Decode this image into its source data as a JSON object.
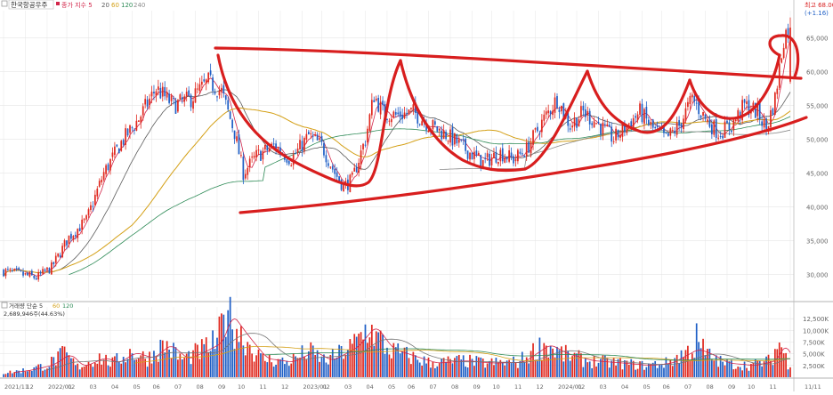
{
  "legend": {
    "stock_name": "한국항공우주",
    "ma_label": "종가 지수 5",
    "ma_periods": [
      "20",
      "60",
      "120",
      "240"
    ],
    "ma_colors": [
      "#d2264a",
      "#5b5b5b",
      "#d4a017",
      "#2e8b57",
      "#8c8c8c"
    ]
  },
  "max_label": "최고 68.00",
  "change_label": "(+1.16)",
  "volume_legend": {
    "label": "거래량 단순 5",
    "ma_periods": [
      "60",
      "120"
    ],
    "current_value": "2,689,946주(44.63%)"
  },
  "colors": {
    "up": "#e0281e",
    "down": "#1f5fc6",
    "annotation": "#d81e1e",
    "grid": "#e6e6e6",
    "axis_text": "#666666"
  },
  "chart_data": {
    "type": "candlestick",
    "title": "",
    "price_axis": {
      "ticks": [
        "65,000",
        "60,000",
        "55,000",
        "50,000",
        "45,000",
        "40,000",
        "35,000",
        "30,000"
      ],
      "range": [
        26500,
        69000
      ]
    },
    "volume_axis": {
      "ticks": [
        "12,500K",
        "10,000K",
        "7,500K",
        "5,000K",
        "2,500K"
      ],
      "range": [
        0,
        15000
      ]
    },
    "x_tick_labels": [
      "2021/11",
      "12",
      "2022/01",
      "02",
      "03",
      "04",
      "05",
      "06",
      "07",
      "08",
      "09",
      "10",
      "11",
      "12",
      "2023/01",
      "02",
      "03",
      "04",
      "05",
      "06",
      "07",
      "08",
      "09",
      "10",
      "11",
      "12",
      "2024/01",
      "02",
      "03",
      "04",
      "05",
      "06",
      "07",
      "08",
      "09",
      "10",
      "11",
      "11/11"
    ],
    "price_waypoints": [
      [
        0,
        30500
      ],
      [
        8,
        30000
      ],
      [
        15,
        29500
      ],
      [
        22,
        31000
      ],
      [
        30,
        35500
      ],
      [
        38,
        38000
      ],
      [
        46,
        45000
      ],
      [
        54,
        49500
      ],
      [
        62,
        53000
      ],
      [
        70,
        57500
      ],
      [
        78,
        55000
      ],
      [
        86,
        56000
      ],
      [
        94,
        58500
      ],
      [
        100,
        57000
      ],
      [
        106,
        51000
      ],
      [
        110,
        45000
      ],
      [
        116,
        47500
      ],
      [
        124,
        49000
      ],
      [
        132,
        47000
      ],
      [
        140,
        50500
      ],
      [
        146,
        49000
      ],
      [
        152,
        45000
      ],
      [
        156,
        43000
      ],
      [
        160,
        44000
      ],
      [
        166,
        50000
      ],
      [
        170,
        56500
      ],
      [
        174,
        54000
      ],
      [
        180,
        53500
      ],
      [
        188,
        54000
      ],
      [
        196,
        52000
      ],
      [
        204,
        50500
      ],
      [
        212,
        48500
      ],
      [
        220,
        46500
      ],
      [
        228,
        48000
      ],
      [
        234,
        47000
      ],
      [
        240,
        48500
      ],
      [
        248,
        53000
      ],
      [
        254,
        56000
      ],
      [
        260,
        52000
      ],
      [
        266,
        54000
      ],
      [
        272,
        52500
      ],
      [
        280,
        50000
      ],
      [
        286,
        52000
      ],
      [
        292,
        54000
      ],
      [
        298,
        51500
      ],
      [
        304,
        50000
      ],
      [
        310,
        52000
      ],
      [
        316,
        56000
      ],
      [
        322,
        53000
      ],
      [
        328,
        51000
      ],
      [
        334,
        52000
      ],
      [
        340,
        55000
      ],
      [
        346,
        54000
      ],
      [
        350,
        51500
      ],
      [
        354,
        56000
      ],
      [
        358,
        65000
      ],
      [
        360,
        66500
      ]
    ],
    "volume_waypoints": [
      [
        0,
        900
      ],
      [
        10,
        1500
      ],
      [
        20,
        2600
      ],
      [
        28,
        5000
      ],
      [
        34,
        2200
      ],
      [
        44,
        4200
      ],
      [
        50,
        3000
      ],
      [
        58,
        5300
      ],
      [
        66,
        4000
      ],
      [
        74,
        7000
      ],
      [
        82,
        3800
      ],
      [
        90,
        5500
      ],
      [
        98,
        7500
      ],
      [
        102,
        13500
      ],
      [
        110,
        8500
      ],
      [
        118,
        4000
      ],
      [
        130,
        3200
      ],
      [
        140,
        5500
      ],
      [
        148,
        3500
      ],
      [
        160,
        6500
      ],
      [
        168,
        11000
      ],
      [
        176,
        6000
      ],
      [
        186,
        4500
      ],
      [
        196,
        3000
      ],
      [
        210,
        3500
      ],
      [
        222,
        3000
      ],
      [
        236,
        3200
      ],
      [
        248,
        7000
      ],
      [
        256,
        5000
      ],
      [
        268,
        3500
      ],
      [
        282,
        3000
      ],
      [
        294,
        2500
      ],
      [
        304,
        3000
      ],
      [
        316,
        6000
      ],
      [
        322,
        5000
      ],
      [
        330,
        3000
      ],
      [
        342,
        2500
      ],
      [
        352,
        3500
      ],
      [
        356,
        7500
      ],
      [
        360,
        3000
      ]
    ],
    "volume_spikes": {
      "103": 14300,
      "169": 11200,
      "171": 9800,
      "318": 11500,
      "321": 8200,
      "356": 7400
    },
    "moving_averages": [
      {
        "period": 5,
        "color": "#d2264a"
      },
      {
        "period": 20,
        "color": "#5b5b5b"
      },
      {
        "period": 60,
        "color": "#d4a017"
      },
      {
        "period": 120,
        "color": "#2e8b57"
      },
      {
        "period": 240,
        "color": "#8c8c8c"
      }
    ],
    "annotations": [
      "cup-and-handle arcs",
      "resistance line",
      "rising support line",
      "breakout arc"
    ],
    "grid": true,
    "legend_position": "top-left"
  }
}
